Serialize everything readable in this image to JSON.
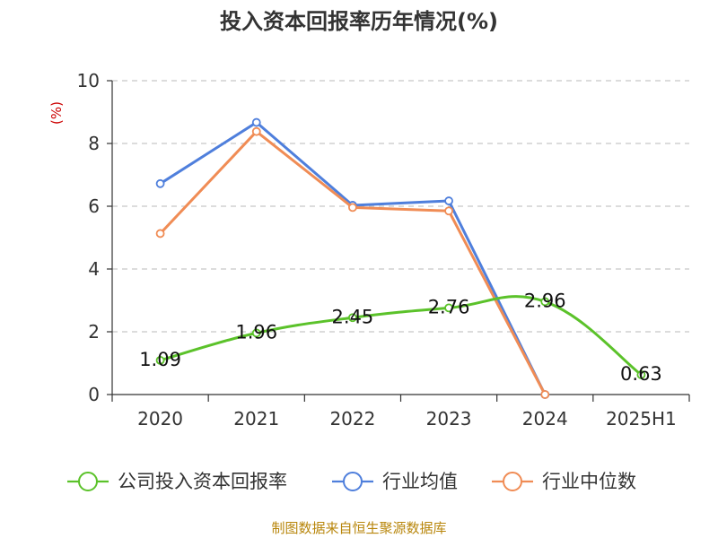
{
  "chart_data": {
    "type": "line",
    "title": "投入资本回报率历年情况(%)",
    "y_unit": "(%)",
    "categories": [
      "2020",
      "2021",
      "2022",
      "2023",
      "2024",
      "2025H1"
    ],
    "ylim": [
      0,
      10
    ],
    "yticks": [
      0,
      2,
      4,
      6,
      8,
      10
    ],
    "grid": true,
    "legend_position": "bottom",
    "series": [
      {
        "name": "公司投入资本回报率",
        "color": "#5bc22a",
        "values": [
          1.09,
          1.96,
          2.45,
          2.76,
          2.96,
          0.63
        ],
        "labels": [
          "1.09",
          "1.96",
          "2.45",
          "2.76",
          "2.96",
          "0.63"
        ],
        "show_labels": true
      },
      {
        "name": "行业均值",
        "color": "#4f7fdc",
        "values": [
          6.72,
          8.67,
          6.03,
          6.17,
          0.0,
          null
        ],
        "show_labels": false
      },
      {
        "name": "行业中位数",
        "color": "#f08c55",
        "values": [
          5.13,
          8.38,
          5.96,
          5.85,
          0.0,
          null
        ],
        "show_labels": false
      }
    ],
    "source": "制图数据来自恒生聚源数据库"
  }
}
